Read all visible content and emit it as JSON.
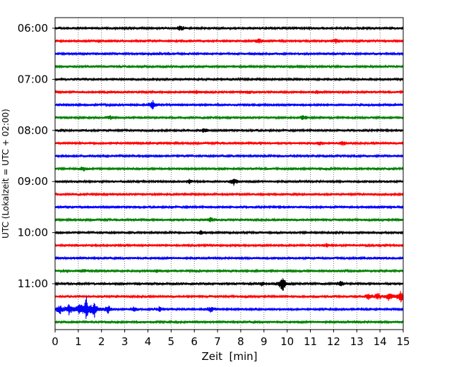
{
  "chart_data": {
    "type": "line",
    "title": "",
    "xlabel": "Zeit  [min]",
    "ylabel": "UTC (Lokalzeit = UTC + 02:00)",
    "xlim": [
      0,
      15
    ],
    "x_ticks": [
      "0",
      "1",
      "2",
      "3",
      "4",
      "5",
      "6",
      "7",
      "8",
      "9",
      "10",
      "11",
      "12",
      "13",
      "14",
      "15"
    ],
    "grid": "vertical dotted",
    "trace_interval_min": 15,
    "start_time": "06:00",
    "y_tick_labels": [
      "06:00",
      "07:00",
      "08:00",
      "09:00",
      "10:00",
      "11:00"
    ],
    "colors": [
      "#000000",
      "#ff0000",
      "#0000ff",
      "#008000"
    ],
    "series": [
      {
        "start": "06:00",
        "color": "#000000",
        "events": [
          {
            "x": 5.4,
            "amp": 3
          }
        ]
      },
      {
        "start": "06:15",
        "color": "#ff0000",
        "events": [
          {
            "x": 8.8,
            "amp": 3
          },
          {
            "x": 12.1,
            "amp": 3
          }
        ]
      },
      {
        "start": "06:30",
        "color": "#0000ff",
        "events": []
      },
      {
        "start": "06:45",
        "color": "#008000",
        "events": []
      },
      {
        "start": "07:00",
        "color": "#000000",
        "events": []
      },
      {
        "start": "07:15",
        "color": "#ff0000",
        "events": [
          {
            "x": 6.1,
            "amp": 2
          },
          {
            "x": 8.3,
            "amp": 2
          },
          {
            "x": 11.3,
            "amp": 2
          }
        ]
      },
      {
        "start": "07:30",
        "color": "#0000ff",
        "events": [
          {
            "x": 4.2,
            "amp": 5
          }
        ]
      },
      {
        "start": "07:45",
        "color": "#008000",
        "events": [
          {
            "x": 2.4,
            "amp": 2
          },
          {
            "x": 10.7,
            "amp": 3
          }
        ]
      },
      {
        "start": "08:00",
        "color": "#000000",
        "events": [
          {
            "x": 6.4,
            "amp": 2
          }
        ]
      },
      {
        "start": "08:15",
        "color": "#ff0000",
        "events": [
          {
            "x": 11.4,
            "amp": 2
          },
          {
            "x": 12.4,
            "amp": 2
          }
        ]
      },
      {
        "start": "08:30",
        "color": "#0000ff",
        "events": []
      },
      {
        "start": "08:45",
        "color": "#008000",
        "events": [
          {
            "x": 1.2,
            "amp": 3
          }
        ]
      },
      {
        "start": "09:00",
        "color": "#000000",
        "events": [
          {
            "x": 5.8,
            "amp": 2
          },
          {
            "x": 7.7,
            "amp": 4
          }
        ]
      },
      {
        "start": "09:15",
        "color": "#ff0000",
        "events": []
      },
      {
        "start": "09:30",
        "color": "#0000ff",
        "events": []
      },
      {
        "start": "09:45",
        "color": "#008000",
        "events": [
          {
            "x": 6.7,
            "amp": 3
          }
        ]
      },
      {
        "start": "10:00",
        "color": "#000000",
        "events": [
          {
            "x": 6.3,
            "amp": 2
          }
        ]
      },
      {
        "start": "10:15",
        "color": "#ff0000",
        "events": [
          {
            "x": 11.7,
            "amp": 2
          }
        ]
      },
      {
        "start": "10:30",
        "color": "#0000ff",
        "events": []
      },
      {
        "start": "10:45",
        "color": "#008000",
        "events": [
          {
            "x": 1.2,
            "amp": 2
          },
          {
            "x": 4.4,
            "amp": 2
          }
        ]
      },
      {
        "start": "11:00",
        "color": "#000000",
        "events": [
          {
            "x": 8.9,
            "amp": 3
          },
          {
            "x": 9.8,
            "amp": 9
          },
          {
            "x": 12.3,
            "amp": 3
          }
        ]
      },
      {
        "start": "11:15",
        "color": "#ff0000",
        "events": [
          {
            "x": 13.5,
            "amp": 3
          },
          {
            "x": 13.9,
            "amp": 4
          },
          {
            "x": 14.4,
            "amp": 5
          },
          {
            "x": 14.9,
            "amp": 7
          }
        ]
      },
      {
        "start": "11:30",
        "color": "#0000ff",
        "events": [
          {
            "x": 0.2,
            "amp": 6
          },
          {
            "x": 0.6,
            "amp": 6
          },
          {
            "x": 1.05,
            "amp": 8
          },
          {
            "x": 1.35,
            "amp": 14
          },
          {
            "x": 1.7,
            "amp": 8
          },
          {
            "x": 2.3,
            "amp": 5
          },
          {
            "x": 3.4,
            "amp": 3
          },
          {
            "x": 4.5,
            "amp": 3
          },
          {
            "x": 6.7,
            "amp": 3
          }
        ]
      },
      {
        "start": "11:45",
        "color": "#008000",
        "events": []
      }
    ]
  }
}
